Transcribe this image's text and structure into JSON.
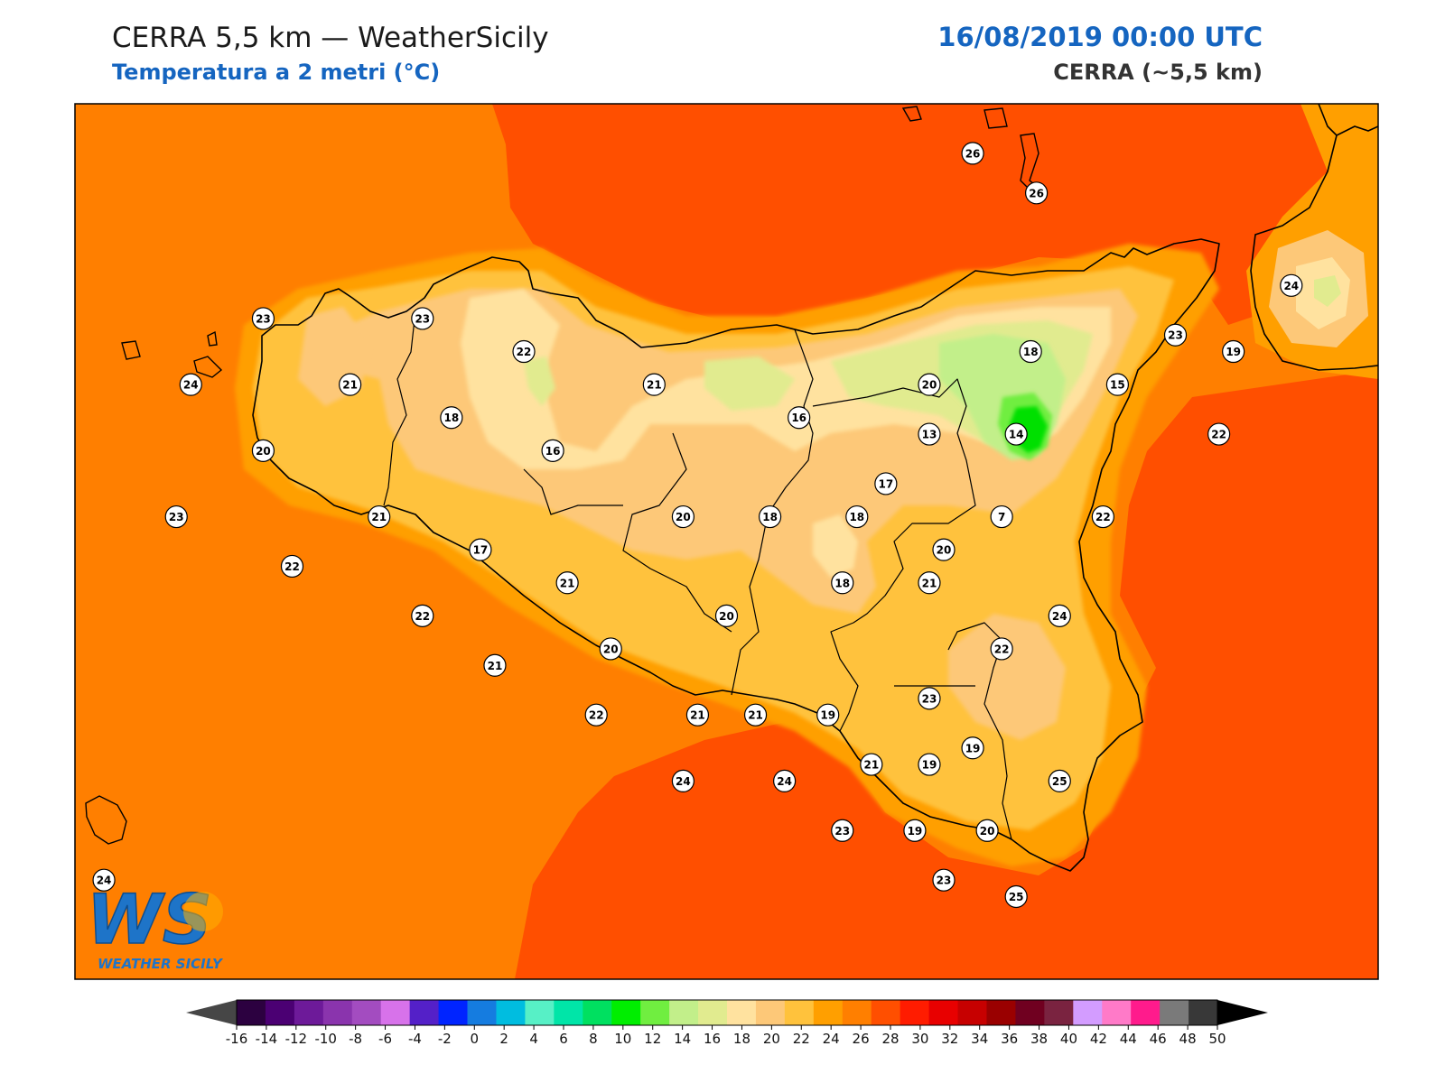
{
  "header": {
    "title_left": "CERRA 5,5 km — WeatherSicily",
    "subtitle_left": "Temperatura a 2 metri (°C)",
    "title_right": "16/08/2019 00:00 UTC",
    "subtitle_right": "CERRA (~5,5 km)"
  },
  "logo": {
    "letters": "WS",
    "text": "WEATHER SICILY"
  },
  "colors": {
    "sea_orange": "#ff7f00",
    "sea_red": "#ff4f00",
    "band_24": "#ff9f00",
    "band_22": "#ffc23c",
    "band_20": "#fdc878",
    "band_18": "#ffe29f",
    "band_16": "#e2eb8f",
    "band_14": "#c4ee8a",
    "band_10": "#00e000",
    "title_blue": "#1565c0"
  },
  "stations": [
    {
      "v": "26",
      "lon": 15.0,
      "lat": 38.8
    },
    {
      "v": "26",
      "lon": 15.22,
      "lat": 38.68
    },
    {
      "v": "23",
      "lon": 12.55,
      "lat": 38.3
    },
    {
      "v": "23",
      "lon": 13.1,
      "lat": 38.3
    },
    {
      "v": "22",
      "lon": 13.45,
      "lat": 38.2
    },
    {
      "v": "24",
      "lon": 12.3,
      "lat": 38.1
    },
    {
      "v": "21",
      "lon": 12.85,
      "lat": 38.1
    },
    {
      "v": "18",
      "lon": 13.2,
      "lat": 38.0
    },
    {
      "v": "21",
      "lon": 13.9,
      "lat": 38.1
    },
    {
      "v": "16",
      "lon": 14.4,
      "lat": 38.0
    },
    {
      "v": "20",
      "lon": 14.85,
      "lat": 38.1
    },
    {
      "v": "18",
      "lon": 15.2,
      "lat": 38.2
    },
    {
      "v": "23",
      "lon": 15.7,
      "lat": 38.25
    },
    {
      "v": "24",
      "lon": 16.1,
      "lat": 38.4
    },
    {
      "v": "19",
      "lon": 15.9,
      "lat": 38.2
    },
    {
      "v": "15",
      "lon": 15.5,
      "lat": 38.1
    },
    {
      "v": "20",
      "lon": 12.55,
      "lat": 37.9
    },
    {
      "v": "16",
      "lon": 13.55,
      "lat": 37.9
    },
    {
      "v": "13",
      "lon": 14.85,
      "lat": 37.95
    },
    {
      "v": "14",
      "lon": 15.15,
      "lat": 37.95
    },
    {
      "v": "22",
      "lon": 15.85,
      "lat": 37.95
    },
    {
      "v": "17",
      "lon": 14.7,
      "lat": 37.8
    },
    {
      "v": "7",
      "lon": 15.1,
      "lat": 37.7
    },
    {
      "v": "23",
      "lon": 12.25,
      "lat": 37.7
    },
    {
      "v": "21",
      "lon": 12.95,
      "lat": 37.7
    },
    {
      "v": "18",
      "lon": 14.3,
      "lat": 37.7
    },
    {
      "v": "18",
      "lon": 14.6,
      "lat": 37.7
    },
    {
      "v": "20",
      "lon": 14.0,
      "lat": 37.7
    },
    {
      "v": "22",
      "lon": 15.45,
      "lat": 37.7
    },
    {
      "v": "20",
      "lon": 14.9,
      "lat": 37.6
    },
    {
      "v": "17",
      "lon": 13.3,
      "lat": 37.6
    },
    {
      "v": "22",
      "lon": 12.65,
      "lat": 37.55
    },
    {
      "v": "21",
      "lon": 14.85,
      "lat": 37.5
    },
    {
      "v": "21",
      "lon": 13.6,
      "lat": 37.5
    },
    {
      "v": "18",
      "lon": 14.55,
      "lat": 37.5
    },
    {
      "v": "22",
      "lon": 13.1,
      "lat": 37.4
    },
    {
      "v": "20",
      "lon": 14.15,
      "lat": 37.4
    },
    {
      "v": "24",
      "lon": 15.3,
      "lat": 37.4
    },
    {
      "v": "20",
      "lon": 13.75,
      "lat": 37.3
    },
    {
      "v": "22",
      "lon": 15.1,
      "lat": 37.3
    },
    {
      "v": "21",
      "lon": 13.35,
      "lat": 37.25
    },
    {
      "v": "23",
      "lon": 14.85,
      "lat": 37.15
    },
    {
      "v": "22",
      "lon": 13.7,
      "lat": 37.1
    },
    {
      "v": "21",
      "lon": 14.05,
      "lat": 37.1
    },
    {
      "v": "21",
      "lon": 14.25,
      "lat": 37.1
    },
    {
      "v": "19",
      "lon": 14.5,
      "lat": 37.1
    },
    {
      "v": "19",
      "lon": 15.0,
      "lat": 37.0
    },
    {
      "v": "21",
      "lon": 14.65,
      "lat": 36.95
    },
    {
      "v": "19",
      "lon": 14.85,
      "lat": 36.95
    },
    {
      "v": "24",
      "lon": 14.0,
      "lat": 36.9
    },
    {
      "v": "24",
      "lon": 14.35,
      "lat": 36.9
    },
    {
      "v": "25",
      "lon": 15.3,
      "lat": 36.9
    },
    {
      "v": "23",
      "lon": 14.55,
      "lat": 36.75
    },
    {
      "v": "19",
      "lon": 14.8,
      "lat": 36.75
    },
    {
      "v": "20",
      "lon": 15.05,
      "lat": 36.75
    },
    {
      "v": "23",
      "lon": 14.9,
      "lat": 36.6
    },
    {
      "v": "25",
      "lon": 15.15,
      "lat": 36.55
    },
    {
      "v": "24",
      "lon": 12.0,
      "lat": 36.6
    }
  ],
  "colorbar": {
    "ticks": [
      "-16",
      "-14",
      "-12",
      "-10",
      "-8",
      "-6",
      "-4",
      "-2",
      "0",
      "2",
      "4",
      "6",
      "8",
      "10",
      "12",
      "14",
      "16",
      "18",
      "20",
      "22",
      "24",
      "26",
      "28",
      "30",
      "32",
      "34",
      "36",
      "38",
      "40",
      "42",
      "44",
      "46",
      "48",
      "50"
    ],
    "colors": [
      "#2c0140",
      "#4b0073",
      "#6d1a99",
      "#8a34ad",
      "#a34cc0",
      "#d772ea",
      "#5420c8",
      "#0024ff",
      "#157ce0",
      "#00bde0",
      "#57f0c6",
      "#00e5a8",
      "#00e060",
      "#00ee00",
      "#70ee40",
      "#c2ef8a",
      "#e1eb8f",
      "#ffe29f",
      "#fdc878",
      "#ffc23c",
      "#ff9f00",
      "#ff7f00",
      "#ff4f00",
      "#ff1c00",
      "#e80000",
      "#c70000",
      "#9a0000",
      "#700020",
      "#7a2340",
      "#d39cff",
      "#ff7ac8",
      "#ff1b8c",
      "#7a7a7a",
      "#383838"
    ],
    "under_color": "#464646",
    "over_color": "#000000"
  }
}
